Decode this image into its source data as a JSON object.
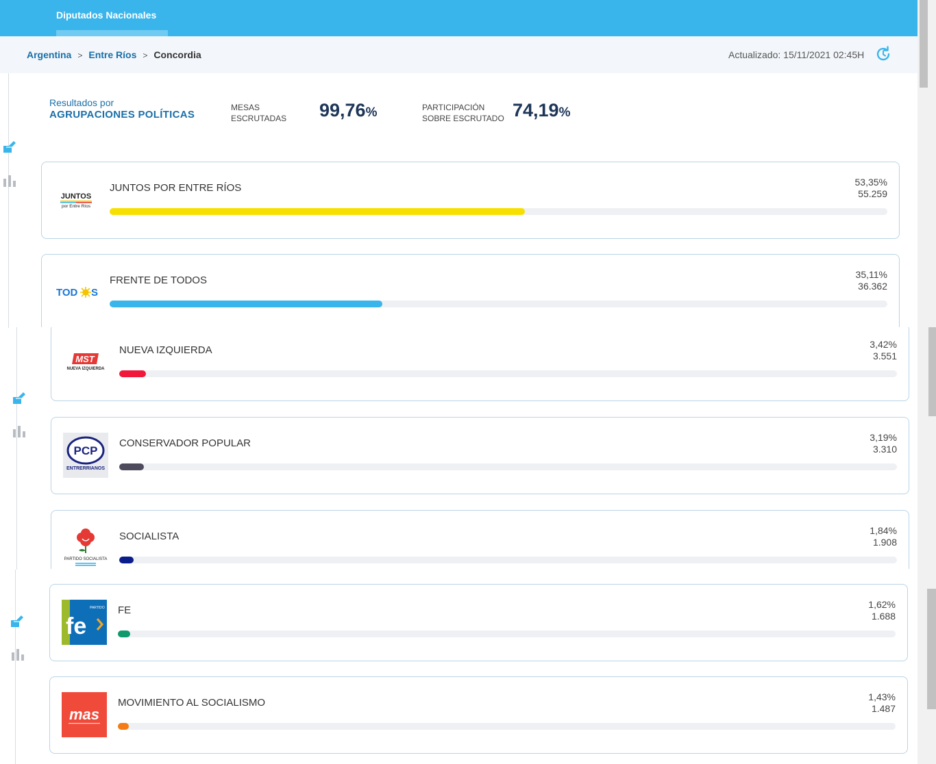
{
  "header": {
    "tab_label": "Diputados Nacionales"
  },
  "breadcrumb": {
    "items": [
      "Argentina",
      "Entre Ríos"
    ],
    "separator": ">",
    "current": "Concordia"
  },
  "updated": "Actualizado: 15/11/2021 02:45H",
  "summary": {
    "title_line1": "Resultados por",
    "title_line2": "AGRUPACIONES POLÍTICAS",
    "mesas_line1": "MESAS",
    "mesas_line2": "ESCRUTADAS",
    "mesas_value": "99,76",
    "participacion_line1": "PARTICIPACIÓN",
    "participacion_line2": "SOBRE ESCRUTADO",
    "participacion_value": "74,19",
    "percent_sign": "%"
  },
  "parties": [
    {
      "name": "JUNTOS POR ENTRE RÍOS",
      "percent": "53,35%",
      "votes": "55.259",
      "share": 53.35,
      "color": "#f7e000",
      "logo_text": "JUNTOS",
      "logo_sub": "por Entre Ríos"
    },
    {
      "name": "FRENTE DE TODOS",
      "percent": "35,11%",
      "votes": "36.362",
      "share": 35.11,
      "color": "#3ab5eb",
      "logo_text": "TODOS"
    },
    {
      "name": "NUEVA IZQUIERDA",
      "percent": "3,42%",
      "votes": "3.551",
      "share": 3.42,
      "color": "#f0173a",
      "logo_text": "MST",
      "logo_sub": "NUEVA IZQUIERDA"
    },
    {
      "name": "CONSERVADOR POPULAR",
      "percent": "3,19%",
      "votes": "3.310",
      "share": 3.19,
      "color": "#4d4b5c",
      "logo_text": "PCP",
      "logo_sub": "ENTRERRIANOS"
    },
    {
      "name": "SOCIALISTA",
      "percent": "1,84%",
      "votes": "1.908",
      "share": 1.84,
      "color": "#0a1d8a",
      "logo_sub": "PARTIDO SOCIALISTA"
    },
    {
      "name": "FE",
      "percent": "1,62%",
      "votes": "1.688",
      "share": 1.62,
      "color": "#0e9a6c",
      "logo_text": "fe",
      "logo_sub": "PARTIDO"
    },
    {
      "name": "MOVIMIENTO AL SOCIALISMO",
      "percent": "1,43%",
      "votes": "1.487",
      "share": 1.43,
      "color": "#f57c14",
      "logo_text": "mas"
    }
  ]
}
